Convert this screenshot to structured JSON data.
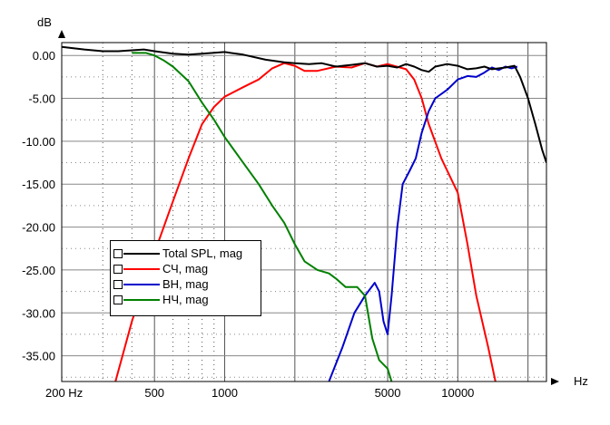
{
  "chart_data": {
    "type": "line",
    "xlabel": "Hz",
    "ylabel": "dB",
    "x_scale": "log",
    "xlim": [
      200,
      24000
    ],
    "ylim": [
      -38,
      1.5
    ],
    "x_tick_values": [
      200,
      500,
      1000,
      5000,
      10000
    ],
    "x_tick_labels": [
      "200 Hz",
      "500",
      "1000",
      "5000",
      "10000"
    ],
    "y_tick_values": [
      0,
      -5,
      -10,
      -15,
      -20,
      -25,
      -30,
      -35
    ],
    "y_tick_labels": [
      "0.00",
      "-5.00",
      "-10.00",
      "-15.00",
      "-20.00",
      "-25.00",
      "-30.00",
      "-35.00"
    ],
    "grid": true,
    "legend_position": "bottom-left",
    "series": [
      {
        "name": "Total SPL, mag",
        "color": "#000000",
        "points": [
          [
            200,
            1.0
          ],
          [
            250,
            0.7
          ],
          [
            300,
            0.5
          ],
          [
            350,
            0.5
          ],
          [
            400,
            0.6
          ],
          [
            450,
            0.7
          ],
          [
            500,
            0.5
          ],
          [
            600,
            0.2
          ],
          [
            700,
            0.1
          ],
          [
            800,
            0.2
          ],
          [
            1000,
            0.4
          ],
          [
            1200,
            0.1
          ],
          [
            1500,
            -0.5
          ],
          [
            1800,
            -0.8
          ],
          [
            2000,
            -0.9
          ],
          [
            2300,
            -1.0
          ],
          [
            2600,
            -0.9
          ],
          [
            3000,
            -1.3
          ],
          [
            3500,
            -1.1
          ],
          [
            4000,
            -0.9
          ],
          [
            4500,
            -1.3
          ],
          [
            5000,
            -1.2
          ],
          [
            5500,
            -1.4
          ],
          [
            6000,
            -1.0
          ],
          [
            6500,
            -1.3
          ],
          [
            7000,
            -1.7
          ],
          [
            7500,
            -1.9
          ],
          [
            8000,
            -1.3
          ],
          [
            9000,
            -1.0
          ],
          [
            10000,
            -1.2
          ],
          [
            11000,
            -1.6
          ],
          [
            12000,
            -1.5
          ],
          [
            13000,
            -1.3
          ],
          [
            14000,
            -1.6
          ],
          [
            16000,
            -1.4
          ],
          [
            17500,
            -1.2
          ],
          [
            18500,
            -2.5
          ],
          [
            20000,
            -5
          ],
          [
            21500,
            -8
          ],
          [
            23000,
            -11
          ],
          [
            24000,
            -12.5
          ]
        ]
      },
      {
        "name": "СЧ, mag",
        "color": "#ff0000",
        "points": [
          [
            340,
            -38
          ],
          [
            400,
            -31
          ],
          [
            500,
            -23
          ],
          [
            600,
            -17
          ],
          [
            700,
            -12
          ],
          [
            800,
            -8
          ],
          [
            900,
            -6
          ],
          [
            1000,
            -4.8
          ],
          [
            1200,
            -3.7
          ],
          [
            1400,
            -2.8
          ],
          [
            1600,
            -1.5
          ],
          [
            1800,
            -0.9
          ],
          [
            2000,
            -1.2
          ],
          [
            2200,
            -1.8
          ],
          [
            2500,
            -1.8
          ],
          [
            3000,
            -1.3
          ],
          [
            3500,
            -1.4
          ],
          [
            4000,
            -0.9
          ],
          [
            4500,
            -1.3
          ],
          [
            5000,
            -1.0
          ],
          [
            6000,
            -1.6
          ],
          [
            6500,
            -2.8
          ],
          [
            7000,
            -5
          ],
          [
            7500,
            -8
          ],
          [
            8500,
            -12
          ],
          [
            10000,
            -16
          ],
          [
            11000,
            -22
          ],
          [
            12000,
            -28
          ],
          [
            13500,
            -34
          ],
          [
            14500,
            -38
          ]
        ]
      },
      {
        "name": "ВН, mag",
        "color": "#0000cc",
        "points": [
          [
            2800,
            -38
          ],
          [
            3200,
            -34
          ],
          [
            3600,
            -30
          ],
          [
            4000,
            -28
          ],
          [
            4400,
            -26.5
          ],
          [
            4600,
            -27.5
          ],
          [
            4800,
            -31
          ],
          [
            5000,
            -32.5
          ],
          [
            5200,
            -28
          ],
          [
            5500,
            -20
          ],
          [
            5800,
            -15
          ],
          [
            6200,
            -13.5
          ],
          [
            6600,
            -12
          ],
          [
            7000,
            -9
          ],
          [
            7500,
            -6.5
          ],
          [
            8000,
            -5
          ],
          [
            9000,
            -4
          ],
          [
            10000,
            -2.8
          ],
          [
            11000,
            -2.4
          ],
          [
            12000,
            -2.5
          ],
          [
            13000,
            -2.0
          ],
          [
            14000,
            -1.4
          ],
          [
            15000,
            -1.7
          ],
          [
            16000,
            -1.3
          ],
          [
            17000,
            -1.5
          ],
          [
            18000,
            -1.3
          ]
        ]
      },
      {
        "name": "НЧ, mag",
        "color": "#008000",
        "points": [
          [
            400,
            0.3
          ],
          [
            460,
            0.3
          ],
          [
            500,
            0
          ],
          [
            550,
            -0.6
          ],
          [
            600,
            -1.3
          ],
          [
            700,
            -3
          ],
          [
            800,
            -5.5
          ],
          [
            900,
            -7.5
          ],
          [
            1000,
            -9.5
          ],
          [
            1200,
            -12.5
          ],
          [
            1400,
            -15
          ],
          [
            1600,
            -17.5
          ],
          [
            1800,
            -19.5
          ],
          [
            2000,
            -22
          ],
          [
            2200,
            -24
          ],
          [
            2500,
            -25
          ],
          [
            2800,
            -25.4
          ],
          [
            3000,
            -26
          ],
          [
            3300,
            -27
          ],
          [
            3700,
            -27
          ],
          [
            4000,
            -28
          ],
          [
            4300,
            -33
          ],
          [
            4600,
            -35.5
          ],
          [
            5000,
            -36.5
          ],
          [
            5200,
            -38
          ]
        ]
      }
    ]
  }
}
